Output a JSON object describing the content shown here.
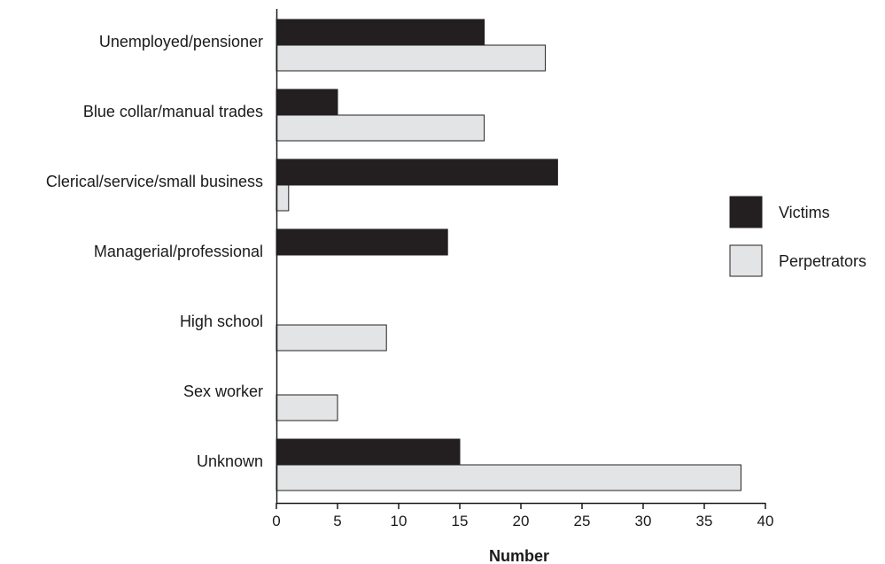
{
  "chart_data": {
    "type": "bar",
    "orientation": "horizontal",
    "categories": [
      "Unemployed/pensioner",
      "Blue collar/manual trades",
      "Clerical/service/small business",
      "Managerial/professional",
      "High school",
      "Sex worker",
      "Unknown"
    ],
    "series": [
      {
        "name": "Victims",
        "color": "#231f20",
        "values": [
          17,
          5,
          23,
          14,
          0,
          0,
          15
        ]
      },
      {
        "name": "Perpetrators",
        "color": "#e3e4e5",
        "values": [
          22,
          17,
          1,
          0,
          9,
          5,
          38
        ]
      }
    ],
    "xlabel": "Number",
    "ylabel": "",
    "xlim": [
      0,
      40
    ],
    "xticks": [
      "0",
      "5",
      "10",
      "15",
      "20",
      "25",
      "30",
      "35",
      "40"
    ],
    "grid": false,
    "legend_position": "right"
  }
}
